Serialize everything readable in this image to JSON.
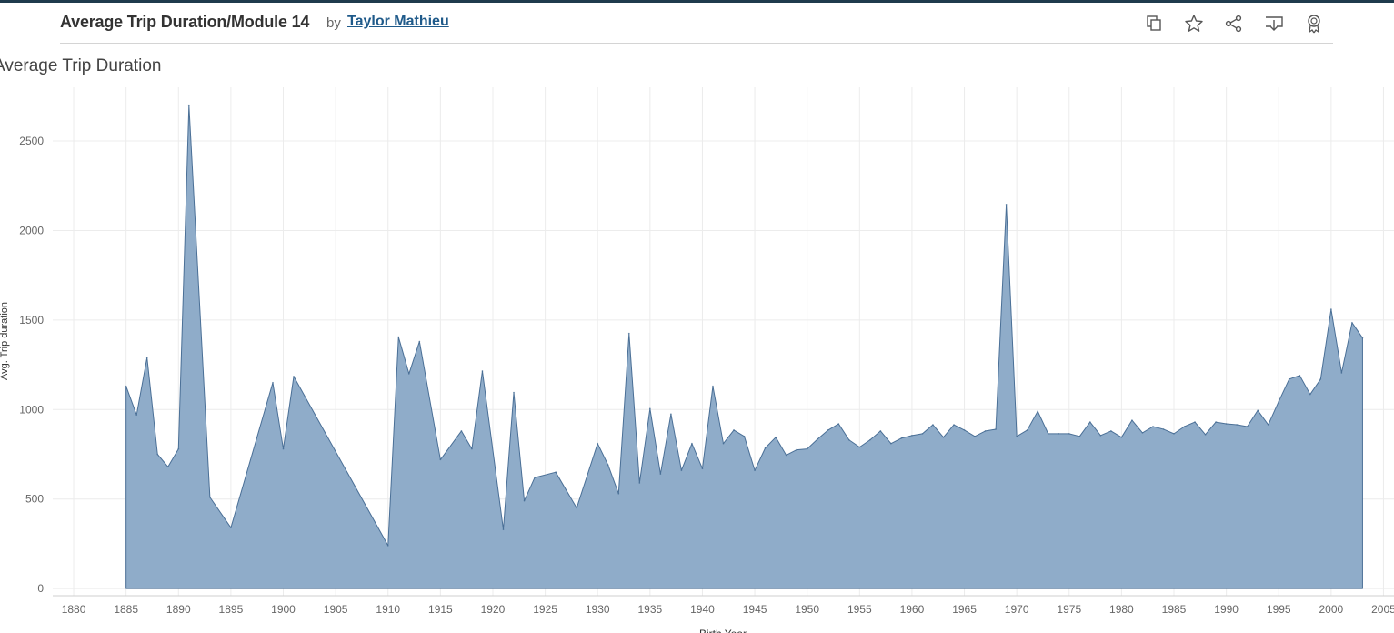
{
  "header": {
    "title": "Average Trip Duration/Module 14",
    "by_label": "by",
    "author": "Taylor Mathieu",
    "toolbar_icons": [
      "copy-icon",
      "star-icon",
      "share-icon",
      "download-icon",
      "award-icon"
    ]
  },
  "colors": {
    "area": "#8facc9",
    "line": "#4a6f96",
    "grid": "#ececec",
    "topbar": "#1f3b4d"
  },
  "chart_data": {
    "type": "area",
    "title": "Average Trip Duration",
    "xlabel": "Birth Year",
    "ylabel": "Avg. Trip duration",
    "xlim": [
      1878,
      2006
    ],
    "ylim": [
      -40,
      2800
    ],
    "x_ticks": [
      1880,
      1885,
      1890,
      1895,
      1900,
      1905,
      1910,
      1915,
      1920,
      1925,
      1930,
      1935,
      1940,
      1945,
      1950,
      1955,
      1960,
      1965,
      1970,
      1975,
      1980,
      1985,
      1990,
      1995,
      2000,
      2005
    ],
    "y_ticks": [
      0,
      500,
      1000,
      1500,
      2000,
      2500
    ],
    "series": [
      {
        "name": "Avg. Trip duration",
        "x": [
          1885,
          1886,
          1887,
          1888,
          1889,
          1890,
          1891,
          1893,
          1895,
          1899,
          1900,
          1901,
          1910,
          1911,
          1912,
          1913,
          1915,
          1917,
          1918,
          1919,
          1921,
          1922,
          1923,
          1924,
          1926,
          1928,
          1930,
          1931,
          1932,
          1933,
          1934,
          1935,
          1936,
          1937,
          1938,
          1939,
          1940,
          1941,
          1942,
          1943,
          1944,
          1945,
          1946,
          1947,
          1948,
          1949,
          1950,
          1951,
          1952,
          1953,
          1954,
          1955,
          1956,
          1957,
          1958,
          1959,
          1960,
          1961,
          1962,
          1963,
          1964,
          1965,
          1966,
          1967,
          1968,
          1969,
          1970,
          1971,
          1972,
          1973,
          1974,
          1975,
          1976,
          1977,
          1978,
          1979,
          1980,
          1981,
          1982,
          1983,
          1984,
          1985,
          1986,
          1987,
          1988,
          1989,
          1990,
          1991,
          1992,
          1993,
          1994,
          1995,
          1996,
          1997,
          1998,
          1999,
          2000,
          2001,
          2002,
          2003
        ],
        "values": [
          1130,
          970,
          1290,
          750,
          680,
          780,
          2700,
          510,
          340,
          1150,
          780,
          1185,
          240,
          1405,
          1200,
          1380,
          720,
          880,
          780,
          1215,
          330,
          1095,
          490,
          620,
          650,
          450,
          810,
          690,
          530,
          1425,
          590,
          1005,
          640,
          975,
          660,
          810,
          670,
          1130,
          810,
          885,
          850,
          660,
          785,
          845,
          745,
          775,
          780,
          835,
          885,
          920,
          830,
          790,
          830,
          880,
          810,
          840,
          855,
          865,
          915,
          845,
          915,
          885,
          850,
          880,
          890,
          2145,
          850,
          885,
          990,
          865,
          865,
          865,
          850,
          930,
          855,
          880,
          845,
          940,
          870,
          905,
          890,
          865,
          905,
          930,
          860,
          930,
          920,
          915,
          905,
          995,
          915,
          1045,
          1170,
          1190,
          1085,
          1170,
          1560,
          1205,
          1485,
          1400
        ]
      }
    ]
  }
}
